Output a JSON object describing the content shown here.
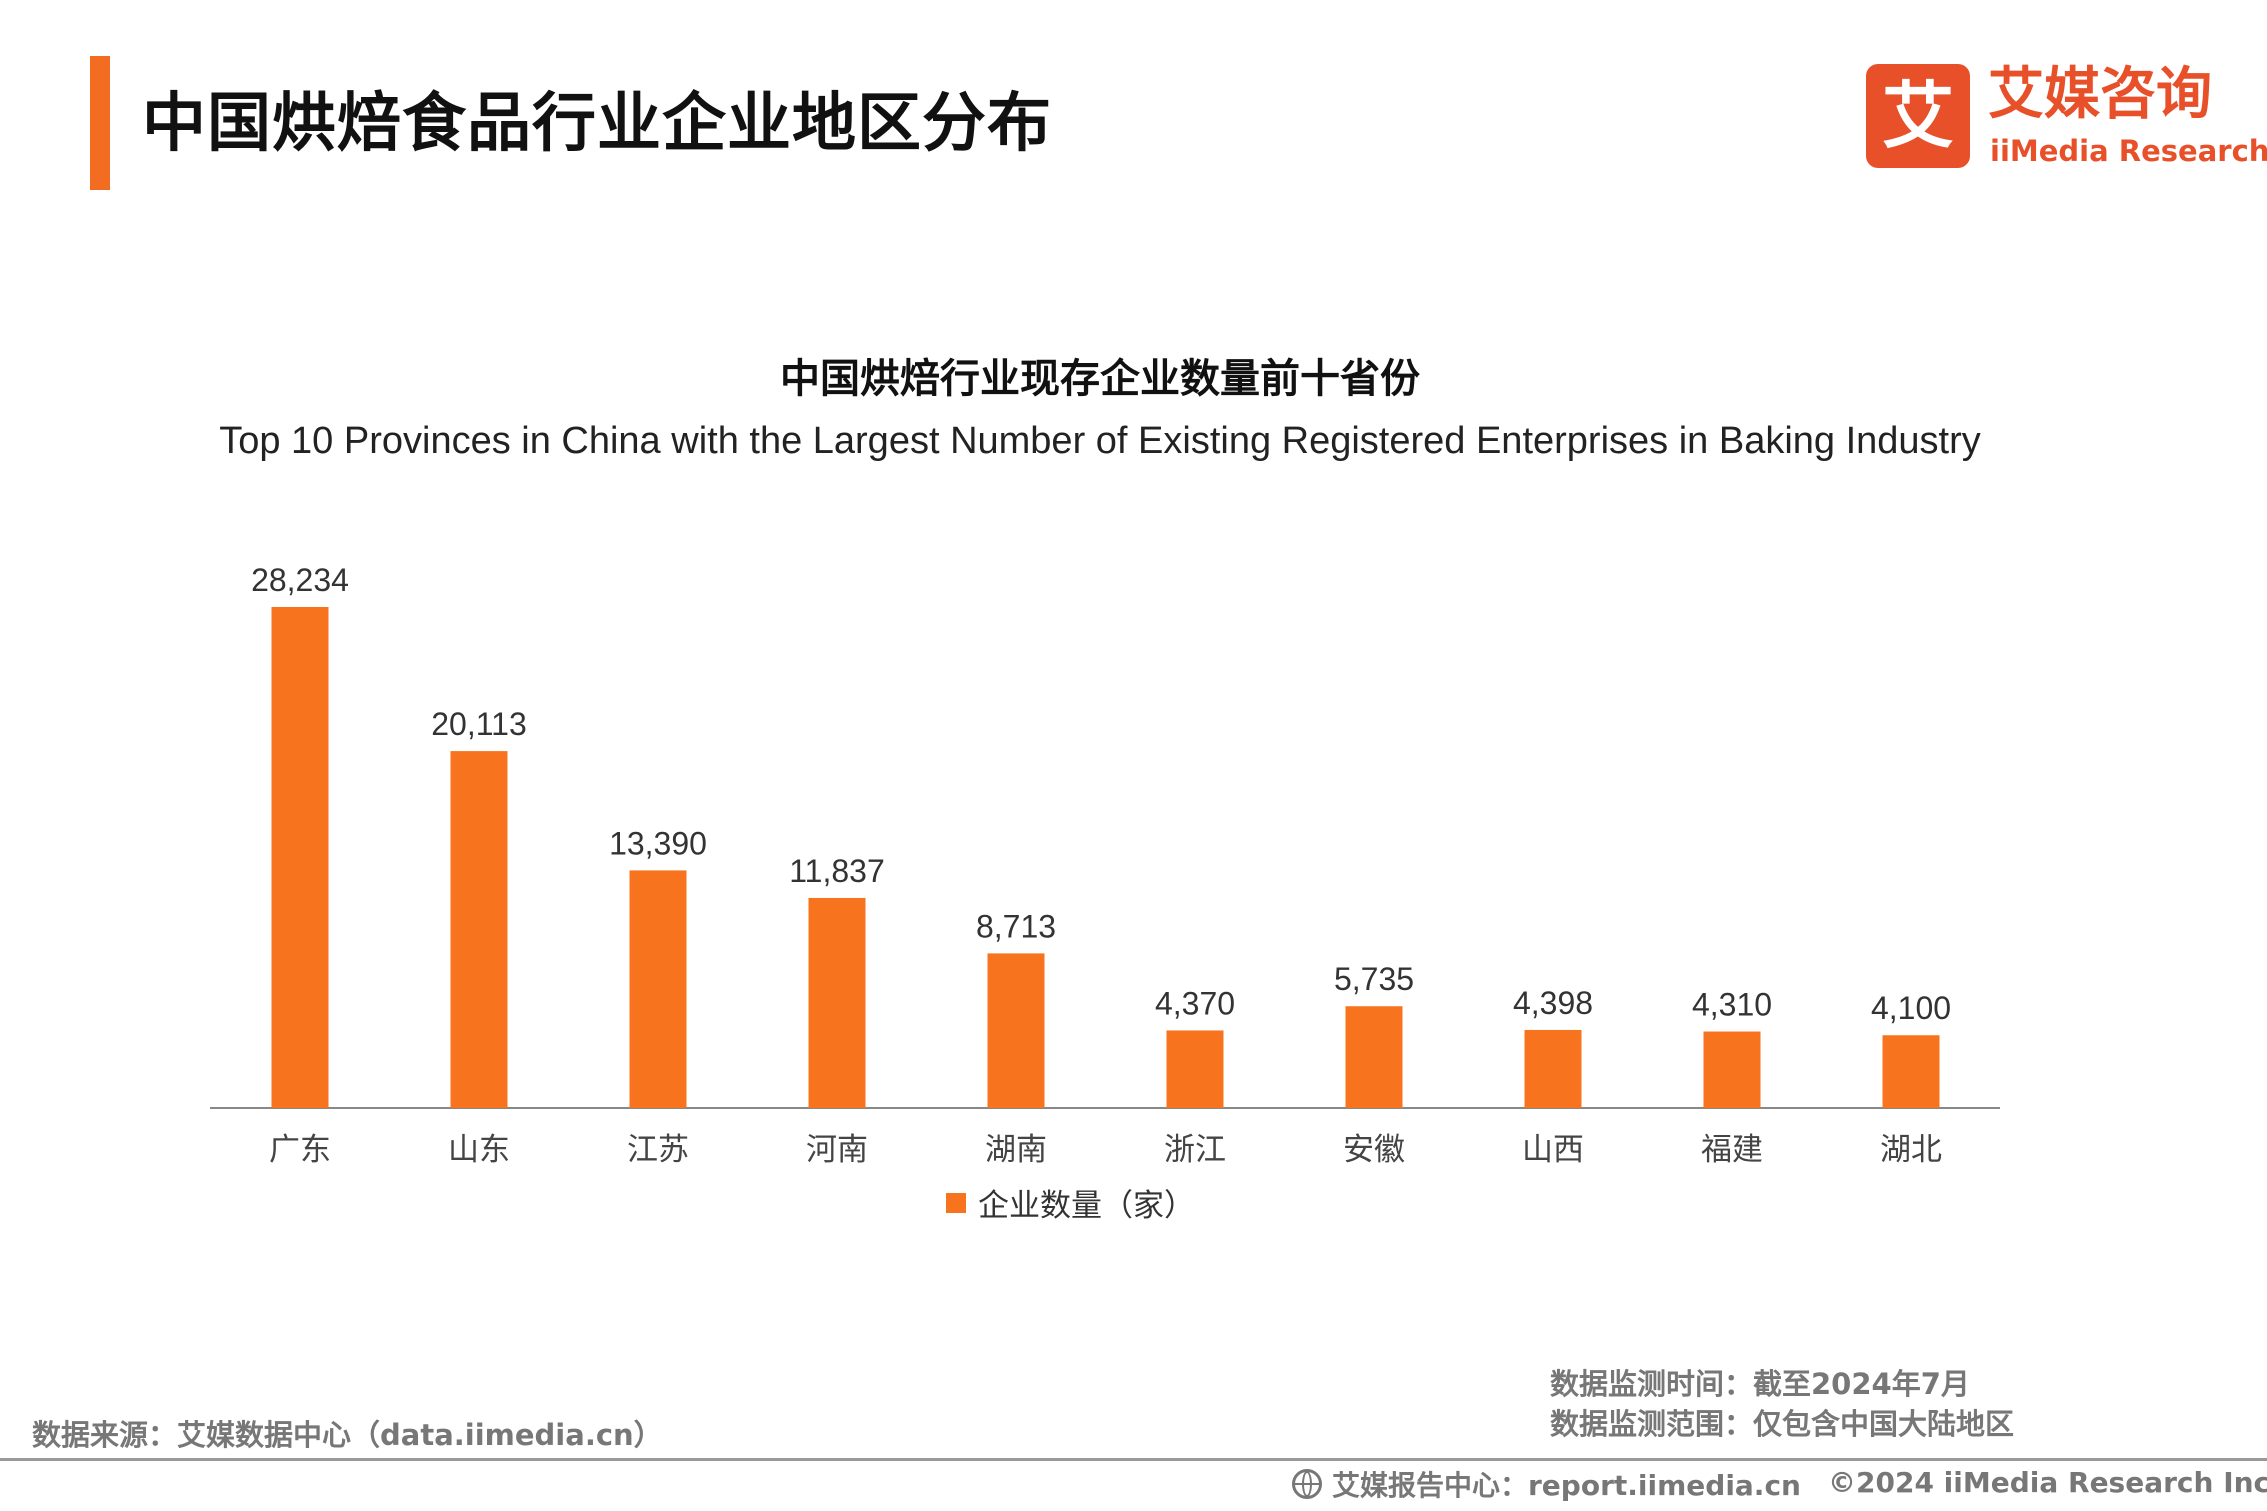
{
  "header": {
    "title": "中国烘焙食品行业企业地区分布",
    "accent_color": "#f26d21"
  },
  "logo": {
    "mark": "艾",
    "name_cn": "艾媒咨询",
    "name_en": "iiMedia Research",
    "color": "#e8502a"
  },
  "chart_data": {
    "type": "bar",
    "title": "中国烘焙行业现存企业数量前十省份",
    "subtitle": "Top 10 Provinces in China with the Largest Number of Existing Registered Enterprises in Baking Industry",
    "categories": [
      "广东",
      "山东",
      "江苏",
      "河南",
      "湖南",
      "浙江",
      "安徽",
      "山西",
      "福建",
      "湖北"
    ],
    "series": [
      {
        "name": "企业数量（家）",
        "values": [
          28234,
          20113,
          13390,
          11837,
          8713,
          4370,
          5735,
          4398,
          4310,
          4100
        ],
        "labels": [
          "28,234",
          "20,113",
          "13,390",
          "11,837",
          "8,713",
          "4,370",
          "5,735",
          "4,398",
          "4,310",
          "4,100"
        ],
        "color": "#f7731e"
      }
    ],
    "ylim": [
      0,
      30000
    ],
    "grid": false,
    "legend_position": "bottom-center"
  },
  "legend": {
    "label": "企业数量（家）"
  },
  "footer": {
    "monitor_time": "数据监测时间：截至2024年7月",
    "monitor_scope": "数据监测范围：仅包含中国大陆地区",
    "source": "数据来源：艾媒数据中心（data.iimedia.cn）",
    "report_center": "艾媒报告中心：report.iimedia.cn",
    "copyright": "©2024 iiMedia Research  Inc"
  }
}
